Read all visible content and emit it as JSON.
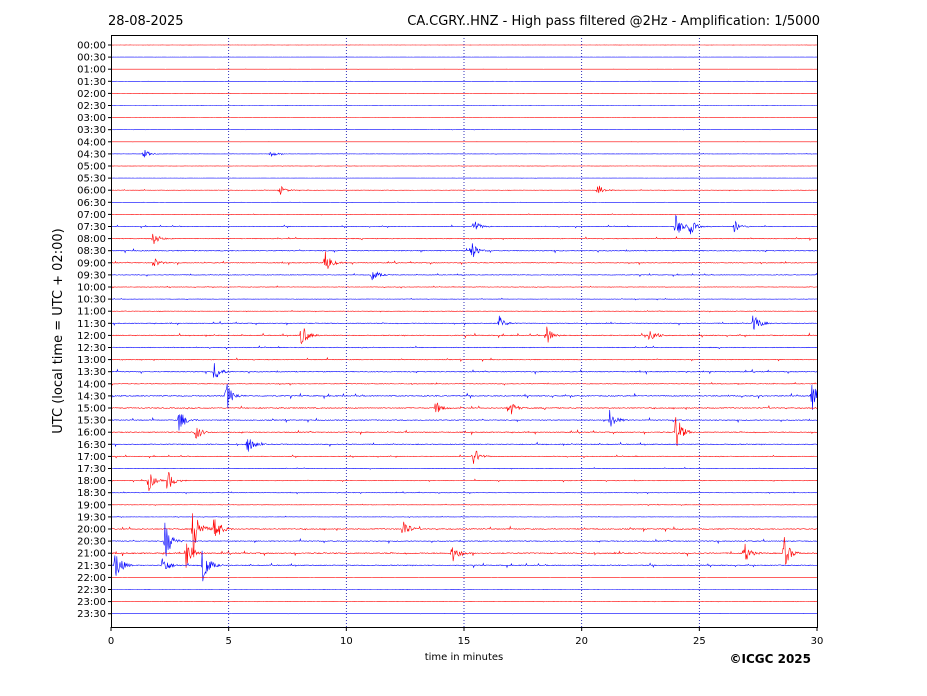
{
  "chart_data": {
    "type": "line",
    "date": "28-08-2025",
    "title": "CA.CGRY..HNZ - High pass filtered @2Hz - Amplification: 1/5000",
    "xlabel": "time in minutes",
    "ylabel": "UTC (local time = UTC + 02:00)",
    "credit": "©ICGC 2025",
    "xlim": [
      0,
      30
    ],
    "x_ticks": [
      0,
      5,
      10,
      15,
      20,
      25,
      30
    ],
    "x_tick_labels": [
      "0",
      "5",
      "10",
      "15",
      "20",
      "25",
      "30"
    ],
    "grid": "vertical dotted at 5, 10, 15, 20, 25",
    "colors": {
      "even": "#ff0000",
      "odd": "#0000ff",
      "grid": "#0000aa"
    },
    "row_labels": [
      "00:00",
      "00:30",
      "01:00",
      "01:30",
      "02:00",
      "02:30",
      "03:00",
      "03:30",
      "04:00",
      "04:30",
      "05:00",
      "05:30",
      "06:00",
      "06:30",
      "07:00",
      "07:30",
      "08:00",
      "08:30",
      "09:00",
      "09:30",
      "10:00",
      "10:30",
      "11:00",
      "11:30",
      "12:00",
      "12:30",
      "13:00",
      "13:30",
      "14:00",
      "14:30",
      "15:00",
      "15:30",
      "16:00",
      "16:30",
      "17:00",
      "17:30",
      "18:00",
      "18:30",
      "19:00",
      "19:30",
      "20:00",
      "20:30",
      "21:00",
      "21:30",
      "22:00",
      "22:30",
      "23:00",
      "23:30"
    ],
    "noise_levels": [
      0.02,
      0.02,
      0.03,
      0.05,
      0.04,
      0.02,
      0.02,
      0.04,
      0.03,
      0.08,
      0.05,
      0.03,
      0.1,
      0.05,
      0.1,
      0.2,
      0.25,
      0.3,
      0.25,
      0.2,
      0.15,
      0.12,
      0.12,
      0.25,
      0.3,
      0.25,
      0.25,
      0.3,
      0.2,
      0.35,
      0.35,
      0.3,
      0.3,
      0.3,
      0.2,
      0.15,
      0.2,
      0.15,
      0.1,
      0.1,
      0.35,
      0.3,
      0.4,
      0.3,
      0.02,
      0.02,
      0.05,
      0.02
    ],
    "events": [
      {
        "row": 9,
        "t": 1.4,
        "amp": 0.4
      },
      {
        "row": 9,
        "t": 6.8,
        "amp": 0.3
      },
      {
        "row": 12,
        "t": 7.2,
        "amp": 0.4
      },
      {
        "row": 12,
        "t": 20.7,
        "amp": 0.5
      },
      {
        "row": 15,
        "t": 15.4,
        "amp": 0.7
      },
      {
        "row": 15,
        "t": 24.0,
        "amp": 1.1
      },
      {
        "row": 15,
        "t": 24.6,
        "amp": 0.7
      },
      {
        "row": 15,
        "t": 26.5,
        "amp": 0.6
      },
      {
        "row": 16,
        "t": 1.8,
        "amp": 0.6
      },
      {
        "row": 17,
        "t": 15.3,
        "amp": 0.9
      },
      {
        "row": 18,
        "t": 9.1,
        "amp": 1.1
      },
      {
        "row": 18,
        "t": 1.8,
        "amp": 0.5
      },
      {
        "row": 19,
        "t": 11.1,
        "amp": 0.6
      },
      {
        "row": 23,
        "t": 16.5,
        "amp": 0.6
      },
      {
        "row": 23,
        "t": 27.3,
        "amp": 1.0
      },
      {
        "row": 24,
        "t": 8.1,
        "amp": 1.1
      },
      {
        "row": 24,
        "t": 18.5,
        "amp": 0.9
      },
      {
        "row": 24,
        "t": 22.9,
        "amp": 0.8
      },
      {
        "row": 27,
        "t": 4.4,
        "amp": 0.9
      },
      {
        "row": 29,
        "t": 4.9,
        "amp": 1.3
      },
      {
        "row": 29,
        "t": 29.8,
        "amp": 1.2
      },
      {
        "row": 30,
        "t": 16.9,
        "amp": 0.9
      },
      {
        "row": 30,
        "t": 13.8,
        "amp": 0.6
      },
      {
        "row": 31,
        "t": 2.9,
        "amp": 1.1
      },
      {
        "row": 31,
        "t": 21.2,
        "amp": 1.0
      },
      {
        "row": 32,
        "t": 24.0,
        "amp": 1.8
      },
      {
        "row": 32,
        "t": 3.6,
        "amp": 0.7
      },
      {
        "row": 33,
        "t": 5.8,
        "amp": 0.8
      },
      {
        "row": 34,
        "t": 15.4,
        "amp": 0.9
      },
      {
        "row": 36,
        "t": 1.6,
        "amp": 0.9
      },
      {
        "row": 36,
        "t": 2.4,
        "amp": 1.0
      },
      {
        "row": 40,
        "t": 3.5,
        "amp": 2.6
      },
      {
        "row": 40,
        "t": 4.4,
        "amp": 1.4
      },
      {
        "row": 40,
        "t": 12.4,
        "amp": 1.0
      },
      {
        "row": 41,
        "t": 2.3,
        "amp": 1.8
      },
      {
        "row": 42,
        "t": 3.2,
        "amp": 1.5
      },
      {
        "row": 42,
        "t": 14.5,
        "amp": 0.9
      },
      {
        "row": 42,
        "t": 26.9,
        "amp": 1.0
      },
      {
        "row": 42,
        "t": 28.6,
        "amp": 1.4
      },
      {
        "row": 43,
        "t": 0.2,
        "amp": 1.5
      },
      {
        "row": 43,
        "t": 2.2,
        "amp": 1.0
      },
      {
        "row": 43,
        "t": 3.9,
        "amp": 1.9
      }
    ]
  }
}
